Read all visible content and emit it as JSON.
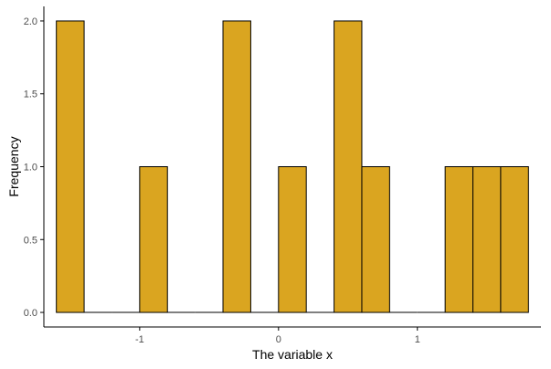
{
  "chart_data": {
    "type": "bar",
    "title": "",
    "xlabel": "The variable x",
    "ylabel": "Frequency",
    "bin_width": 0.2,
    "bins": [
      {
        "x0": -1.6,
        "x1": -1.4,
        "count": 2
      },
      {
        "x0": -1.4,
        "x1": -1.2,
        "count": 0
      },
      {
        "x0": -1.2,
        "x1": -1.0,
        "count": 0
      },
      {
        "x0": -1.0,
        "x1": -0.8,
        "count": 1
      },
      {
        "x0": -0.8,
        "x1": -0.6,
        "count": 0
      },
      {
        "x0": -0.6,
        "x1": -0.4,
        "count": 0
      },
      {
        "x0": -0.4,
        "x1": -0.2,
        "count": 2
      },
      {
        "x0": -0.2,
        "x1": 0.0,
        "count": 0
      },
      {
        "x0": 0.0,
        "x1": 0.2,
        "count": 1
      },
      {
        "x0": 0.2,
        "x1": 0.4,
        "count": 0
      },
      {
        "x0": 0.4,
        "x1": 0.6,
        "count": 2
      },
      {
        "x0": 0.6,
        "x1": 0.8,
        "count": 1
      },
      {
        "x0": 0.8,
        "x1": 1.0,
        "count": 0
      },
      {
        "x0": 1.0,
        "x1": 1.2,
        "count": 0
      },
      {
        "x0": 1.2,
        "x1": 1.4,
        "count": 1
      },
      {
        "x0": 1.4,
        "x1": 1.6,
        "count": 1
      },
      {
        "x0": 1.6,
        "x1": 1.8,
        "count": 1
      }
    ],
    "xlim": [
      -1.69,
      1.89
    ],
    "ylim": [
      -0.1,
      2.1
    ],
    "x_ticks": [
      {
        "value": -1,
        "label": "-1"
      },
      {
        "value": 0,
        "label": "0"
      },
      {
        "value": 1,
        "label": "1"
      }
    ],
    "y_ticks": [
      {
        "value": 0,
        "label": "0.0"
      },
      {
        "value": 0.5,
        "label": "0.5"
      },
      {
        "value": 1,
        "label": "1.0"
      },
      {
        "value": 1.5,
        "label": "1.5"
      },
      {
        "value": 2,
        "label": "2.0"
      }
    ],
    "grid": false,
    "legend": "none",
    "colors": {
      "bar_fill": "#DAA520",
      "bar_stroke": "#000000",
      "axis": "#000000",
      "tick_text": "#4d4d4d"
    }
  }
}
